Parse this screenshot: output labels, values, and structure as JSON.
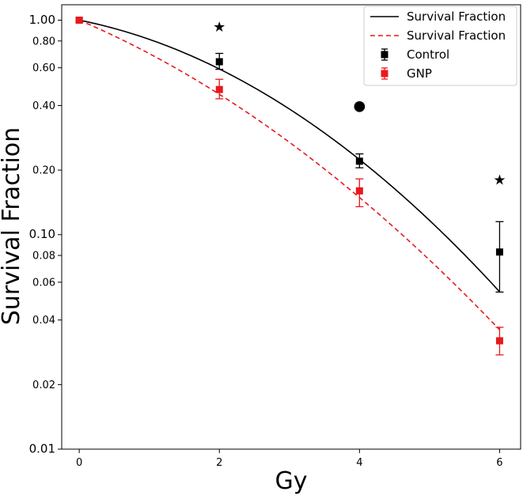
{
  "chart_data": {
    "type": "line",
    "title": "",
    "xlabel": "Gy",
    "ylabel": "Survival Fraction",
    "yscale": "log",
    "xlim": [
      -0.25,
      6.3
    ],
    "ylim": [
      0.01,
      1.18
    ],
    "x_ticks": [
      0,
      2,
      4,
      6
    ],
    "x_tick_labels": [
      "0",
      "2",
      "4",
      "6"
    ],
    "y_ticks": [
      0.01,
      0.02,
      0.04,
      0.06,
      0.08,
      0.1,
      0.2,
      0.4,
      0.6,
      0.8,
      1.0
    ],
    "y_tick_labels": [
      "0.01",
      "0.02",
      "0.04",
      "0.06",
      "0.08",
      "0.10",
      "0.20",
      "0.40",
      "0.60",
      "0.80",
      "1.00"
    ],
    "fits": [
      {
        "name": "Survival Fraction",
        "style": "solid",
        "color": "#000000",
        "model": "linear-quadratic",
        "alpha": 0.15,
        "beta": 0.056
      },
      {
        "name": "Survival Fraction",
        "style": "dashed",
        "color": "#e8191e",
        "model": "linear-quadratic",
        "alpha": 0.32,
        "beta": 0.039
      }
    ],
    "series": [
      {
        "name": "Control",
        "color": "#000000",
        "x": [
          0,
          2,
          4,
          6
        ],
        "values": [
          1.0,
          0.64,
          0.22,
          0.083
        ],
        "err_low": [
          0.0,
          0.05,
          0.015,
          0.029
        ],
        "err_high": [
          0.0,
          0.06,
          0.018,
          0.032
        ]
      },
      {
        "name": "GNP",
        "color": "#e8191e",
        "x": [
          0,
          2,
          4,
          6
        ],
        "values": [
          1.0,
          0.475,
          0.16,
          0.032
        ],
        "err_low": [
          0.0,
          0.045,
          0.025,
          0.0045
        ],
        "err_high": [
          0.0,
          0.055,
          0.022,
          0.005
        ]
      }
    ],
    "annotations": [
      {
        "text": "★",
        "x": 2,
        "y": 0.93
      },
      {
        "text": "●",
        "x": 4,
        "y": 0.4
      },
      {
        "text": "★",
        "x": 6,
        "y": 0.18
      }
    ],
    "legend": {
      "position": "top-right",
      "entries": [
        {
          "label": "Survival Fraction",
          "kind": "line-solid",
          "color": "#000000"
        },
        {
          "label": "Survival Fraction",
          "kind": "line-dashed",
          "color": "#e8191e"
        },
        {
          "label": "Control",
          "kind": "marker-errorbar",
          "color": "#000000"
        },
        {
          "label": "GNP",
          "kind": "marker-errorbar",
          "color": "#e8191e"
        }
      ]
    }
  }
}
